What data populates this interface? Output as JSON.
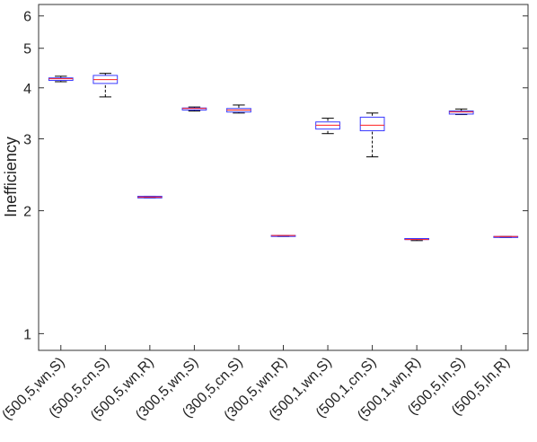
{
  "chart_data": {
    "type": "box",
    "ylabel": "Inefficiency",
    "categories": [
      "(500,5,wn,S)",
      "(500,5,cn,S)",
      "(500,5,wn,R)",
      "(300,5,wn,S)",
      "(300,5,cn,S)",
      "(300,5,wn,R)",
      "(500,1,wn,S)",
      "(500,1,cn,S)",
      "(500,1,wn,R)",
      "(500,5,ln,S)",
      "(500,5,ln,R)"
    ],
    "min": [
      4.14,
      3.8,
      2.15,
      3.51,
      3.47,
      1.73,
      3.09,
      2.71,
      1.69,
      3.44,
      1.72
    ],
    "q1": [
      4.17,
      4.1,
      2.15,
      3.53,
      3.49,
      1.73,
      3.17,
      3.14,
      1.7,
      3.45,
      1.72
    ],
    "median": [
      4.21,
      4.19,
      2.16,
      3.56,
      3.53,
      1.74,
      3.24,
      3.24,
      1.7,
      3.49,
      1.73
    ],
    "q3": [
      4.23,
      4.29,
      2.17,
      3.57,
      3.56,
      1.74,
      3.3,
      3.39,
      1.71,
      3.51,
      1.73
    ],
    "max": [
      4.27,
      4.34,
      2.17,
      3.59,
      3.63,
      1.74,
      3.37,
      3.47,
      1.71,
      3.55,
      1.73
    ],
    "ylim": [
      0.91,
      6.4
    ],
    "yticks": [
      1,
      2,
      3,
      4,
      5,
      6
    ],
    "log_y": true,
    "box_color": "#3a3aff",
    "median_color": "#ff2020",
    "whisker_color": "#000000"
  }
}
